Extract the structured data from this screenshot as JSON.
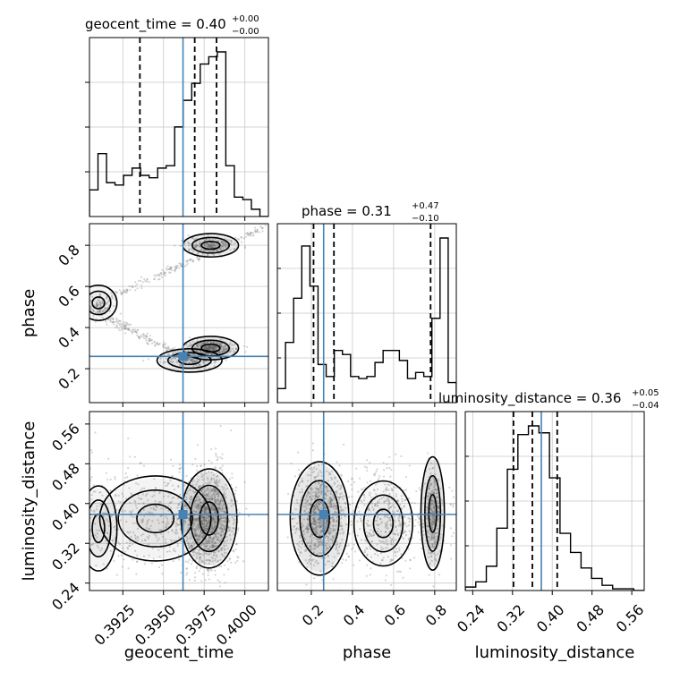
{
  "chart_data": {
    "type": "corner",
    "parameters": [
      "geocent_time",
      "phase",
      "luminosity_distance"
    ],
    "titles": [
      {
        "param": "geocent_time",
        "median": "0.40",
        "plus": "+0.00",
        "minus": "−0.00"
      },
      {
        "param": "phase",
        "median": "0.31",
        "plus": "+0.47",
        "minus": "−0.10"
      },
      {
        "param": "luminosity_distance",
        "median": "0.36",
        "plus": "+0.05",
        "minus": "−0.04"
      }
    ],
    "axis_labels": {
      "x": [
        "geocent_time",
        "phase",
        "luminosity_distance"
      ],
      "y": [
        "phase",
        "luminosity_distance"
      ]
    },
    "ranges": {
      "geocent_time": [
        0.39045,
        0.40145
      ],
      "phase": [
        0.035,
        0.905
      ],
      "luminosity_distance": [
        0.225,
        0.585
      ]
    },
    "ticks": {
      "geocent_time": [
        "0.3925",
        "0.3950",
        "0.3975",
        "0.4000"
      ],
      "phase": [
        "0.2",
        "0.4",
        "0.6",
        "0.8"
      ],
      "luminosity_distance": [
        "0.24",
        "0.32",
        "0.40",
        "0.48",
        "0.56"
      ]
    },
    "truth": {
      "geocent_time": 0.3962,
      "phase": 0.26,
      "luminosity_distance": 0.378
    },
    "quantiles": {
      "geocent_time": [
        0.39355,
        0.39692,
        0.39826
      ],
      "phase": [
        0.211,
        0.31,
        0.78
      ],
      "luminosity_distance": [
        0.322,
        0.36,
        0.41
      ]
    },
    "histograms": {
      "geocent_time": [
        0.11,
        0.26,
        0.14,
        0.13,
        0.17,
        0.2,
        0.17,
        0.16,
        0.2,
        0.21,
        0.37,
        0.48,
        0.55,
        0.63,
        0.66,
        0.68,
        0.21,
        0.08,
        0.07,
        0.03,
        0.0
      ],
      "phase": [
        0.07,
        0.3,
        0.52,
        0.78,
        0.58,
        0.19,
        0.13,
        0.26,
        0.24,
        0.13,
        0.12,
        0.13,
        0.2,
        0.26,
        0.26,
        0.21,
        0.12,
        0.15,
        0.13,
        0.42,
        0.82,
        0.1
      ],
      "luminosity_distance": [
        0.02,
        0.05,
        0.14,
        0.36,
        0.7,
        0.9,
        0.95,
        0.91,
        0.65,
        0.33,
        0.22,
        0.13,
        0.07,
        0.03,
        0.01,
        0.01,
        0.0
      ]
    },
    "grid": true,
    "colors": {
      "truth": "#4682b4",
      "hist": "#000000",
      "scatter": "#888888"
    }
  }
}
